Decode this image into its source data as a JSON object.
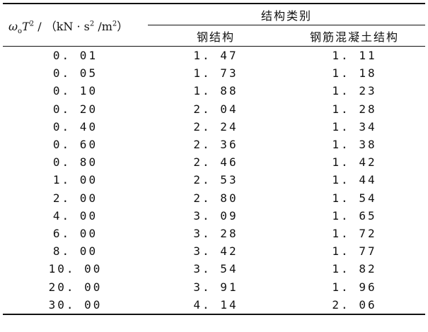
{
  "table": {
    "param_header": {
      "symbol": "ω",
      "symbol_sub": "o",
      "var": "T",
      "var_sup": "2",
      "unit_prefix": " / （kN · s",
      "unit_sup1": "2",
      "unit_mid": " /m",
      "unit_sup2": "2",
      "unit_suffix": "）"
    },
    "group_header": "结构类别",
    "columns": [
      "钢结构",
      "钢筋混凝土结构"
    ],
    "rows": [
      [
        "0. 01",
        "1. 47",
        "1. 11"
      ],
      [
        "0. 05",
        "1. 73",
        "1. 18"
      ],
      [
        "0. 10",
        "1. 88",
        "1. 23"
      ],
      [
        "0. 20",
        "2. 04",
        "1. 28"
      ],
      [
        "0. 40",
        "2. 24",
        "1. 34"
      ],
      [
        "0. 60",
        "2. 36",
        "1. 38"
      ],
      [
        "0. 80",
        "2. 46",
        "1. 42"
      ],
      [
        "1. 00",
        "2. 53",
        "1. 44"
      ],
      [
        "2. 00",
        "2. 80",
        "1. 54"
      ],
      [
        "4. 00",
        "3. 09",
        "1. 65"
      ],
      [
        "6. 00",
        "3. 28",
        "1. 72"
      ],
      [
        "8. 00",
        "3. 42",
        "1. 77"
      ],
      [
        "10. 00",
        "3. 54",
        "1. 82"
      ],
      [
        "20. 00",
        "3. 91",
        "1. 96"
      ],
      [
        "30. 00",
        "4. 14",
        "2. 06"
      ]
    ]
  }
}
